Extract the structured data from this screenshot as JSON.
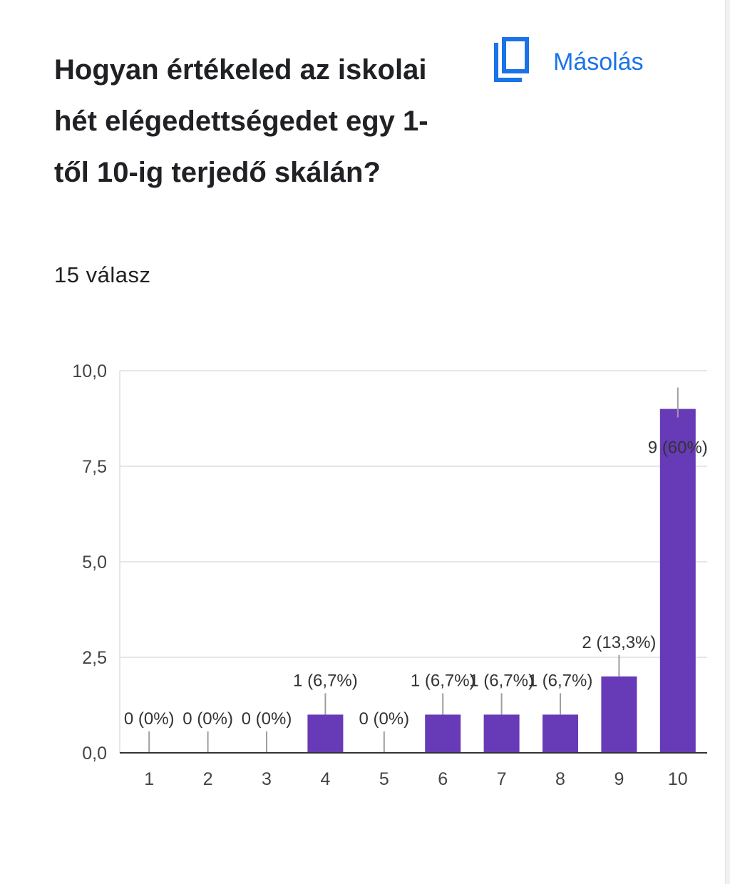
{
  "question": {
    "title": "Hogyan értékeled az iskolai hét elégedettségedet egy 1-től 10-ig terjedő skálán?",
    "response_count": "15 válasz"
  },
  "copy_button": {
    "label": "Másolás",
    "icon": "copy-icon"
  },
  "colors": {
    "bar": "#673ab7",
    "accent": "#1a73e8",
    "text": "#202124",
    "axis_label": "#444444"
  },
  "chart_data": {
    "type": "bar",
    "categories": [
      "1",
      "2",
      "3",
      "4",
      "5",
      "6",
      "7",
      "8",
      "9",
      "10"
    ],
    "values": [
      0,
      0,
      0,
      1,
      0,
      1,
      1,
      1,
      2,
      9
    ],
    "data_labels": [
      "0 (0%)",
      "0 (0%)",
      "0 (0%)",
      "1 (6,7%)",
      "0 (0%)",
      "1 (6,7%)",
      "1 (6,7%)",
      "1 (6,7%)",
      "2 (13,3%)",
      "9 (60%)"
    ],
    "yticks": [
      "0,0",
      "2,5",
      "5,0",
      "7,5",
      "10,0"
    ],
    "ylim": [
      0,
      10
    ],
    "grid": true,
    "legend": "none"
  }
}
